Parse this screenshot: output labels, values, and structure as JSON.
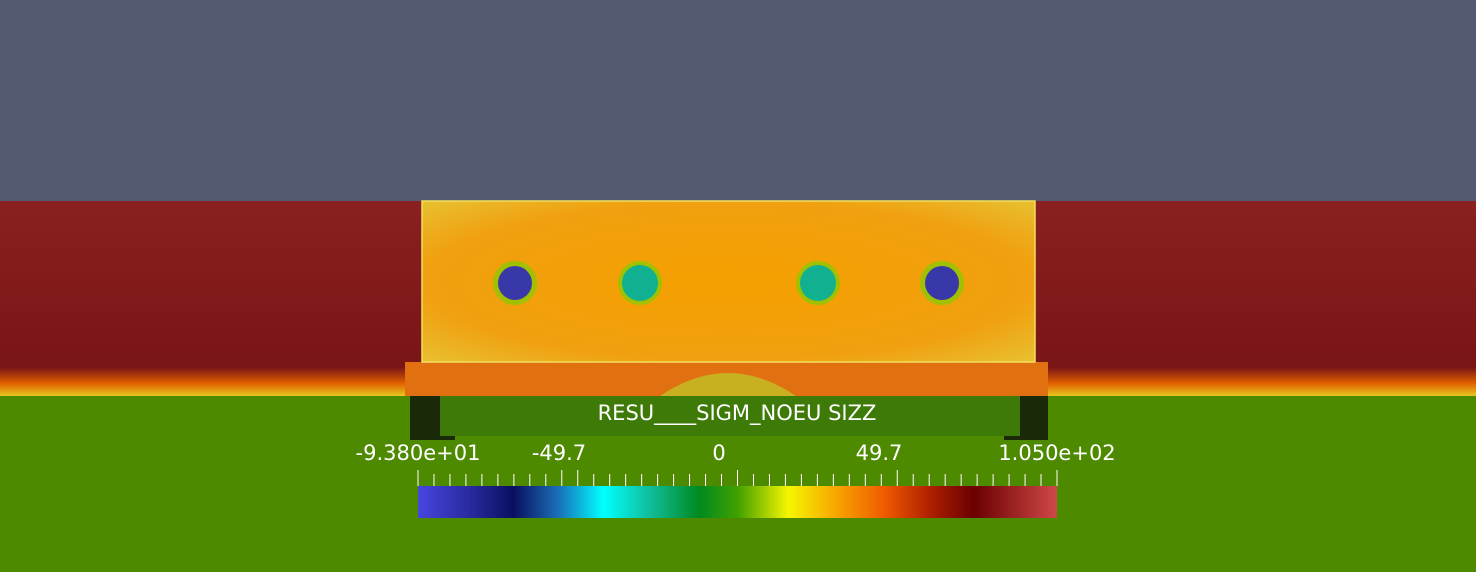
{
  "legend": {
    "title": "RESU____SIGM_NOEU SIZZ",
    "labels": [
      "-9.380e+01",
      "-49.7",
      "0",
      "49.7",
      "1.050e+02"
    ]
  }
}
